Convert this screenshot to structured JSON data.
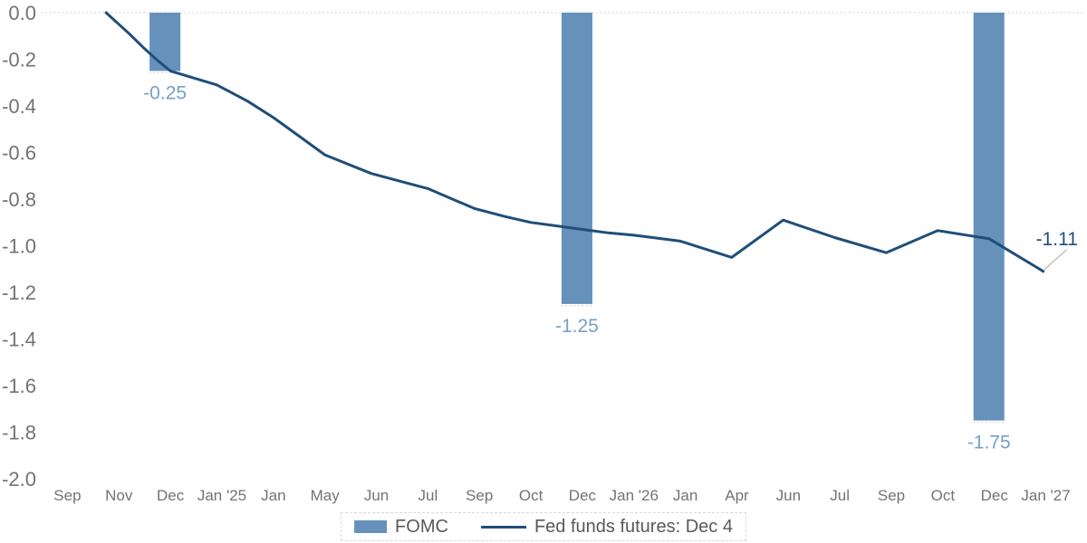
{
  "chart_data": {
    "type": "combo",
    "title": "",
    "xlabel": "",
    "ylabel": "",
    "categories": [
      "Sep",
      "Nov",
      "Dec",
      "Jan '25",
      "Jan",
      "May",
      "Jun",
      "Jul",
      "Sep",
      "Oct",
      "Dec",
      "Jan '26",
      "Jan",
      "Apr",
      "Jun",
      "Jul",
      "Sep",
      "Oct",
      "Dec",
      "Jan '27"
    ],
    "y_axis": {
      "min": -2.0,
      "max": 0.0,
      "step": 0.2,
      "tick_labels": [
        "0.0",
        "-0.2",
        "-0.4",
        "-0.6",
        "-0.8",
        "-1.0",
        "-1.2",
        "-1.4",
        "-1.6",
        "-1.8",
        "-2.0"
      ]
    },
    "grid": {
      "zero_line_only": true
    },
    "legend_position": "bottom",
    "series": [
      {
        "name": "FOMC",
        "type": "bar",
        "color": "#6591bb",
        "label_color": "#76a0c8",
        "points": [
          {
            "category": "Dec",
            "category_index": 2,
            "value": -0.25,
            "label": "-0.25"
          },
          {
            "category": "Dec",
            "category_index": 10,
            "value": -1.25,
            "label": "-1.25"
          },
          {
            "category": "Dec",
            "category_index": 18,
            "value": -1.75,
            "label": "-1.75"
          }
        ]
      },
      {
        "name": "Fed funds futures: Dec 4",
        "type": "line",
        "color": "#1f4e79",
        "points": [
          [
            0.75,
            0.0
          ],
          [
            1.2,
            -0.09
          ],
          [
            1.5,
            -0.155
          ],
          [
            1.75,
            -0.205
          ],
          [
            2,
            -0.25
          ],
          [
            2.9,
            -0.31
          ],
          [
            3.5,
            -0.38
          ],
          [
            4,
            -0.45
          ],
          [
            4.5,
            -0.53
          ],
          [
            5,
            -0.61
          ],
          [
            5.9,
            -0.69
          ],
          [
            7,
            -0.755
          ],
          [
            7.9,
            -0.84
          ],
          [
            8.5,
            -0.875
          ],
          [
            9,
            -0.9
          ],
          [
            9.5,
            -0.915
          ],
          [
            10,
            -0.93
          ],
          [
            10.5,
            -0.945
          ],
          [
            11,
            -0.955
          ],
          [
            11.9,
            -0.98
          ],
          [
            12.9,
            -1.05
          ],
          [
            13.9,
            -0.89
          ],
          [
            14.9,
            -0.965
          ],
          [
            15.9,
            -1.03
          ],
          [
            16.9,
            -0.935
          ],
          [
            17.9,
            -0.97
          ],
          [
            18.95,
            -1.11
          ]
        ]
      }
    ],
    "annotation": {
      "text": "-1.11",
      "value": -1.11,
      "color": "#1f4e79"
    },
    "colors": {
      "axis_text": "#737373",
      "grid_line": "#d9d9d9",
      "leader_line": "#a6a6a6",
      "bar_leader_dots": "#c9c9c9",
      "legend_text": "#595959",
      "legend_border": "#d9d9d9",
      "background": "#ffffff"
    }
  },
  "legend": {
    "fomc_label": "FOMC",
    "futures_label": "Fed funds futures: Dec 4"
  }
}
